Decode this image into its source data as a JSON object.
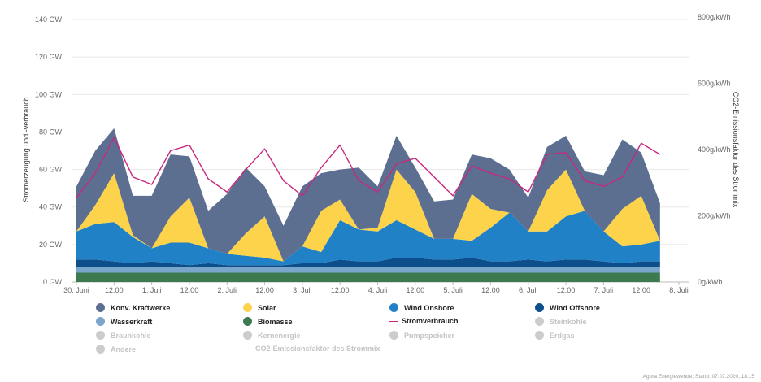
{
  "chart_data": {
    "type": "area",
    "x_ticks": [
      "30. Juni",
      "12:00",
      "1. Juli",
      "12:00",
      "2. Juli",
      "12:00",
      "3. Juli",
      "12:00",
      "4. Juli",
      "12:00",
      "5. Juli",
      "12:00",
      "6. Juli",
      "12:00",
      "7. Juli",
      "12:00",
      "8. Juli"
    ],
    "x_hours": [
      0,
      6,
      12,
      18,
      24,
      30,
      36,
      42,
      48,
      54,
      60,
      66,
      72,
      78,
      84,
      90,
      96,
      102,
      108,
      114,
      120,
      126,
      132,
      138,
      144,
      150,
      156,
      162,
      168,
      174,
      180,
      186
    ],
    "ylabel": "Stromerzeugung und -verbrauch",
    "ylabel_right": "CO2-Emissionsfaktor des Strommix",
    "y_ticks": [
      "0 GW",
      "20 GW",
      "40 GW",
      "60 GW",
      "80 GW",
      "100 GW",
      "120 GW",
      "140 GW"
    ],
    "y_ticks_right": [
      "0g/kWh",
      "200g/kWh",
      "400g/kWh",
      "600g/kWh",
      "800g/kWh"
    ],
    "ylim": [
      0,
      140
    ],
    "ylim_right": [
      0,
      800
    ],
    "grid": true,
    "legend_position": "bottom",
    "series": [
      {
        "name": "Biomasse",
        "color": "#3d7a4f",
        "values": [
          5,
          5,
          5,
          5,
          5,
          5,
          5,
          5,
          5,
          5,
          5,
          5,
          5,
          5,
          5,
          5,
          5,
          5,
          5,
          5,
          5,
          5,
          5,
          5,
          5,
          5,
          5,
          5,
          5,
          5,
          5,
          5
        ]
      },
      {
        "name": "Wasserkraft",
        "color": "#7ba6cc",
        "values": [
          3,
          3,
          3,
          3,
          3,
          3,
          3,
          3,
          3,
          3,
          3,
          3,
          3,
          3,
          3,
          3,
          3,
          3,
          3,
          3,
          3,
          3,
          3,
          3,
          3,
          3,
          3,
          3,
          3,
          3,
          3,
          3
        ]
      },
      {
        "name": "Wind Offshore",
        "color": "#0d4f8a",
        "values": [
          4,
          4,
          3,
          2,
          3,
          2,
          1,
          2,
          1,
          1,
          1,
          1,
          2,
          2,
          4,
          3,
          3,
          5,
          5,
          4,
          4,
          5,
          3,
          3,
          4,
          3,
          4,
          4,
          3,
          2,
          3,
          3
        ]
      },
      {
        "name": "Wind Onshore",
        "color": "#2181c6",
        "values": [
          15,
          19,
          21,
          14,
          7,
          11,
          12,
          8,
          6,
          5,
          4,
          2,
          9,
          6,
          21,
          17,
          16,
          20,
          15,
          11,
          11,
          9,
          18,
          26,
          15,
          16,
          23,
          26,
          16,
          9,
          9,
          11
        ]
      },
      {
        "name": "Solar",
        "color": "#fcd34a",
        "values": [
          0,
          10,
          26,
          1,
          0,
          14,
          24,
          0,
          0,
          12,
          22,
          0,
          0,
          22,
          11,
          0,
          2,
          27,
          20,
          0,
          0,
          25,
          10,
          0,
          0,
          22,
          25,
          0,
          0,
          20,
          26,
          0
        ]
      },
      {
        "name": "Konv. Kraftwerke",
        "color": "#5d6f91",
        "values": [
          24,
          29,
          24,
          21,
          28,
          33,
          22,
          20,
          32,
          35,
          16,
          19,
          32,
          20,
          16,
          33,
          22,
          18,
          13,
          20,
          21,
          21,
          27,
          23,
          18,
          23,
          18,
          21,
          30,
          37,
          23,
          20
        ]
      }
    ],
    "consumption": {
      "name": "Stromverbrauch",
      "color": "#c7287f",
      "values": [
        45,
        58,
        77,
        56,
        52,
        70,
        73,
        55,
        48,
        60,
        71,
        54,
        46,
        61,
        73,
        54,
        48,
        63,
        66,
        56,
        46,
        62,
        58,
        55,
        48,
        68,
        69,
        54,
        51,
        56,
        74,
        68
      ]
    },
    "inactive_series": [
      "Steinkohle",
      "Braunkohle",
      "Kernenergie",
      "Pumpspeicher",
      "Erdgas",
      "Andere",
      "CO2-Emissionsfaktor des Strommix"
    ]
  },
  "legend": [
    {
      "label": "Konv. Kraftwerke",
      "color": "#5d6f91",
      "active": true,
      "type": "dot"
    },
    {
      "label": "Solar",
      "color": "#fcd34a",
      "active": true,
      "type": "dot"
    },
    {
      "label": "Wind Onshore",
      "color": "#2181c6",
      "active": true,
      "type": "dot"
    },
    {
      "label": "Wind Offshore",
      "color": "#0d4f8a",
      "active": true,
      "type": "dot"
    },
    {
      "label": "Wasserkraft",
      "color": "#7ba6cc",
      "active": true,
      "type": "dot"
    },
    {
      "label": "Biomasse",
      "color": "#3d7a4f",
      "active": true,
      "type": "dot"
    },
    {
      "label": "Stromverbrauch",
      "color": "#c7287f",
      "active": true,
      "type": "line"
    },
    {
      "label": "Steinkohle",
      "color": "#cccccc",
      "active": false,
      "type": "dot"
    },
    {
      "label": "Braunkohle",
      "color": "#cccccc",
      "active": false,
      "type": "dot"
    },
    {
      "label": "Kernenergie",
      "color": "#cccccc",
      "active": false,
      "type": "dot"
    },
    {
      "label": "Pumpspeicher",
      "color": "#cccccc",
      "active": false,
      "type": "dot"
    },
    {
      "label": "Erdgas",
      "color": "#cccccc",
      "active": false,
      "type": "dot"
    },
    {
      "label": "Andere",
      "color": "#cccccc",
      "active": false,
      "type": "dot"
    },
    {
      "label": "CO2-Emissionsfaktor des Strommix",
      "color": "#cccccc",
      "active": false,
      "type": "line"
    }
  ],
  "footer": "Agora Energiewende; Stand: 07.07.2020, 18:15"
}
